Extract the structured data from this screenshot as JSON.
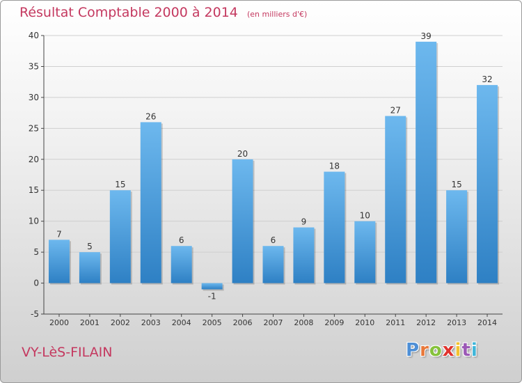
{
  "title": "Résultat Comptable 2000 à 2014",
  "subtitle": "(en milliers d'€)",
  "commune": "VY-LèS-FILAIN",
  "logo": {
    "letters": [
      "P",
      "r",
      "o",
      "x",
      "i",
      "t",
      "i"
    ],
    "colors": [
      "#4e8fd6",
      "#e8783a",
      "#86c23c",
      "#e0332e",
      "#f2c230",
      "#9b59b6",
      "#3fb6d9"
    ]
  },
  "colors": {
    "bar_light": "#6db8ee",
    "bar_dark": "#2e80c4",
    "grid": "#cfcfcf",
    "axis": "#444444",
    "text": "#333333"
  },
  "chart_data": {
    "type": "bar",
    "categories": [
      "2000",
      "2001",
      "2002",
      "2003",
      "2004",
      "2005",
      "2006",
      "2007",
      "2008",
      "2009",
      "2010",
      "2011",
      "2012",
      "2013",
      "2014"
    ],
    "values": [
      7,
      5,
      15,
      26,
      6,
      -1,
      20,
      6,
      9,
      18,
      10,
      27,
      39,
      15,
      32
    ],
    "labels": [
      "7",
      "5",
      "15",
      "26",
      "6",
      "-1",
      "20",
      "6",
      "9",
      "18",
      "10",
      "27",
      "39",
      "15",
      "32"
    ],
    "yticks": [
      -5,
      0,
      5,
      10,
      15,
      20,
      25,
      30,
      35,
      40
    ],
    "ylim": [
      -5,
      40
    ],
    "grid": true,
    "xlabel": "",
    "ylabel": ""
  }
}
